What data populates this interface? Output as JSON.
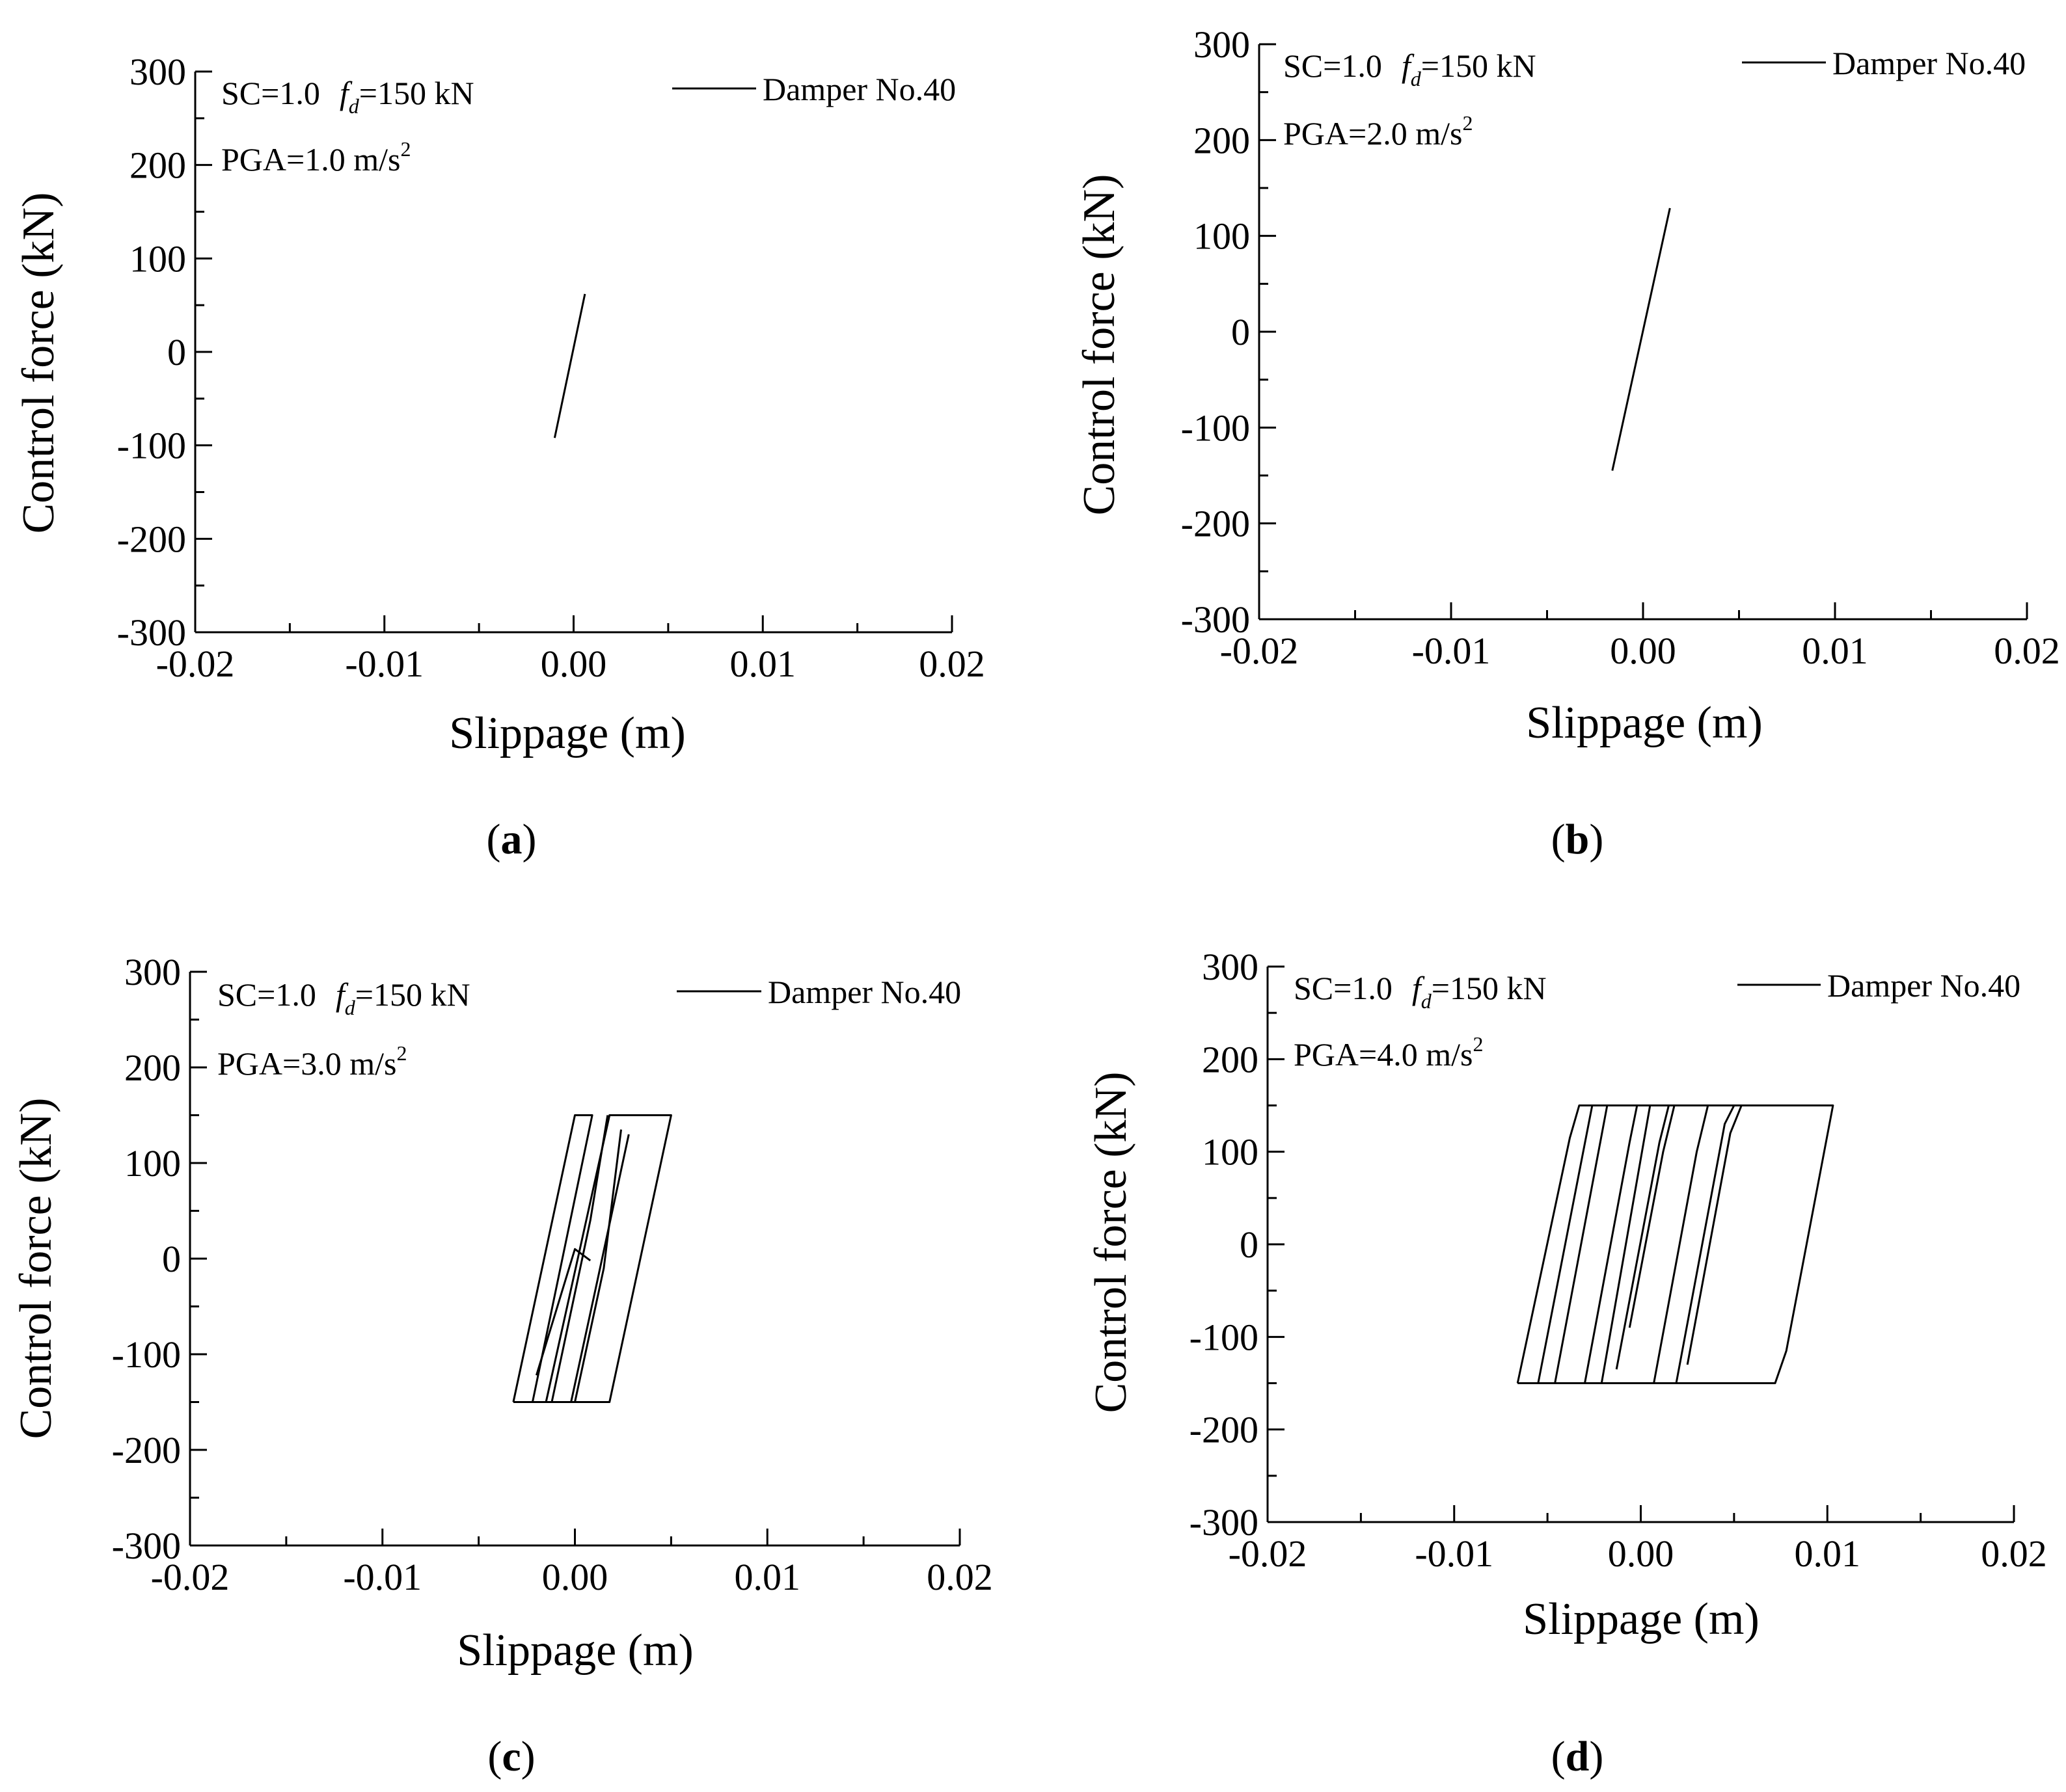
{
  "chart_data": [
    {
      "type": "line",
      "panel_label": "a",
      "xlabel": "Slippage (m)",
      "ylabel": "Control force (kN)",
      "xlim": [
        -0.02,
        0.02
      ],
      "ylim": [
        -300,
        300
      ],
      "xticks": [
        "-0.02",
        "-0.01",
        "0.00",
        "0.01",
        "0.02"
      ],
      "yticks": [
        "300",
        "200",
        "100",
        "0",
        "-100",
        "-200",
        "-300"
      ],
      "annotation": {
        "sc": "SC=1.0",
        "fd_symbol": "f",
        "fd_sub": "d",
        "fd_value": "=150 kN",
        "pga_text": "PGA=1.0 m/s",
        "pga_sup": "2"
      },
      "legend": "Damper No.40",
      "series": [
        {
          "name": "Damper No.40",
          "segments": [
            [
              [
                -0.001,
                -92
              ],
              [
                0.0006,
                62
              ]
            ]
          ]
        }
      ]
    },
    {
      "type": "line",
      "panel_label": "b",
      "xlabel": "Slippage (m)",
      "ylabel": "Control force (kN)",
      "xlim": [
        -0.02,
        0.02
      ],
      "ylim": [
        -300,
        300
      ],
      "xticks": [
        "-0.02",
        "-0.01",
        "0.00",
        "0.01",
        "0.02"
      ],
      "yticks": [
        "300",
        "200",
        "100",
        "0",
        "-100",
        "-200",
        "-300"
      ],
      "annotation": {
        "sc": "SC=1.0",
        "fd_symbol": "f",
        "fd_sub": "d",
        "fd_value": "=150 kN",
        "pga_text": "PGA=2.0 m/s",
        "pga_sup": "2"
      },
      "legend": "Damper No.40",
      "series": [
        {
          "name": "Damper No.40",
          "segments": [
            [
              [
                -0.0016,
                -145
              ],
              [
                0.0014,
                129
              ]
            ]
          ]
        }
      ]
    },
    {
      "type": "line",
      "panel_label": "c",
      "xlabel": "Slippage (m)",
      "ylabel": "Control force (kN)",
      "xlim": [
        -0.02,
        0.02
      ],
      "ylim": [
        -300,
        300
      ],
      "xticks": [
        "-0.02",
        "-0.01",
        "0.00",
        "0.01",
        "0.02"
      ],
      "yticks": [
        "300",
        "200",
        "100",
        "0",
        "-100",
        "-200",
        "-300"
      ],
      "annotation": {
        "sc": "SC=1.0",
        "fd_symbol": "f",
        "fd_sub": "d",
        "fd_value": "=150 kN",
        "pga_text": "PGA=3.0 m/s",
        "pga_sup": "2"
      },
      "legend": "Damper No.40",
      "series": [
        {
          "name": "Damper No.40",
          "segments": [
            [
              [
                -0.002,
                -122
              ],
              [
                0.0,
                10
              ],
              [
                0.0008,
                -2
              ]
            ],
            [
              [
                -0.0032,
                -150
              ],
              [
                0.0018,
                -150
              ],
              [
                0.005,
                150
              ],
              [
                0.0018,
                150
              ],
              [
                -0.0015,
                -150
              ]
            ],
            [
              [
                -0.0032,
                -150
              ],
              [
                0.0,
                150
              ],
              [
                0.0009,
                150
              ],
              [
                -0.0022,
                -150
              ]
            ],
            [
              [
                -0.0002,
                -150
              ],
              [
                0.0012,
                -20
              ],
              [
                0.0028,
                130
              ]
            ],
            [
              [
                0.0,
                -150
              ],
              [
                0.0015,
                -10
              ],
              [
                0.0024,
                135
              ]
            ],
            [
              [
                -0.0012,
                -150
              ],
              [
                0.0008,
                40
              ],
              [
                0.0017,
                150
              ]
            ]
          ]
        }
      ]
    },
    {
      "type": "line",
      "panel_label": "d",
      "xlabel": "Slippage (m)",
      "ylabel": "Control force (kN)",
      "xlim": [
        -0.02,
        0.02
      ],
      "ylim": [
        -300,
        300
      ],
      "xticks": [
        "-0.02",
        "-0.01",
        "0.00",
        "0.01",
        "0.02"
      ],
      "yticks": [
        "300",
        "200",
        "100",
        "0",
        "-100",
        "-200",
        "-300"
      ],
      "annotation": {
        "sc": "SC=1.0",
        "fd_symbol": "f",
        "fd_sub": "d",
        "fd_value": "=150 kN",
        "pga_text": "PGA=4.0 m/s",
        "pga_sup": "2"
      },
      "legend": "Damper No.40",
      "series": [
        {
          "name": "Damper No.40",
          "segments": [
            [
              [
                -0.0066,
                -150
              ],
              [
                0.0072,
                -150
              ],
              [
                0.0078,
                -115
              ],
              [
                0.0103,
                150
              ],
              [
                -0.0033,
                150
              ],
              [
                -0.0038,
                115
              ],
              [
                -0.0066,
                -150
              ]
            ],
            [
              [
                -0.0055,
                -150
              ],
              [
                -0.0026,
                150
              ]
            ],
            [
              [
                -0.0046,
                -150
              ],
              [
                -0.0018,
                150
              ]
            ],
            [
              [
                -0.003,
                -150
              ],
              [
                -0.0006,
                110
              ],
              [
                -0.0002,
                150
              ]
            ],
            [
              [
                -0.0021,
                -150
              ],
              [
                0.0005,
                150
              ]
            ],
            [
              [
                -0.0013,
                -135
              ],
              [
                0.001,
                110
              ],
              [
                0.0015,
                150
              ]
            ],
            [
              [
                -0.0006,
                -90
              ],
              [
                0.0012,
                100
              ],
              [
                0.0018,
                150
              ]
            ],
            [
              [
                0.0007,
                -150
              ],
              [
                0.003,
                100
              ],
              [
                0.0036,
                150
              ]
            ],
            [
              [
                0.0019,
                -150
              ],
              [
                0.0045,
                130
              ],
              [
                0.005,
                150
              ]
            ],
            [
              [
                0.0025,
                -130
              ],
              [
                0.0048,
                120
              ],
              [
                0.0054,
                150
              ]
            ]
          ]
        }
      ]
    }
  ]
}
